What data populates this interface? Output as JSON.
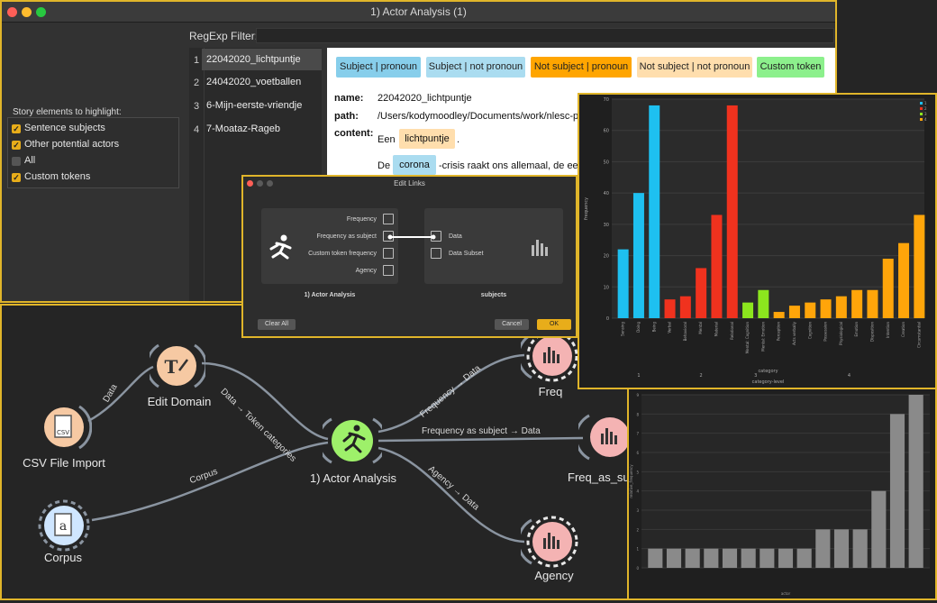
{
  "window": {
    "title": "1) Actor Analysis (1)"
  },
  "regexp": {
    "label": "RegExp Filter:"
  },
  "highlight": {
    "title": "Story elements to highlight:",
    "options": [
      {
        "label": "Sentence subjects",
        "checked": true
      },
      {
        "label": "Other potential actors",
        "checked": true
      },
      {
        "label": "All",
        "checked": false
      },
      {
        "label": "Custom tokens",
        "checked": true
      }
    ]
  },
  "documents": [
    {
      "num": "1",
      "name": "22042020_lichtpuntje"
    },
    {
      "num": "2",
      "name": "24042020_voetballen"
    },
    {
      "num": "3",
      "name": "6-Mijn-eerste-vriendje"
    },
    {
      "num": "4",
      "name": "7-Moataz-Rageb"
    }
  ],
  "legend_tags": [
    {
      "label": "Subject | pronoun",
      "color": "#87ceeb"
    },
    {
      "label": "Subject | not pronoun",
      "color": "#aadcf0"
    },
    {
      "label": "Not subject | pronoun",
      "color": "#ffa500"
    },
    {
      "label": "Not subject | not pronoun",
      "color": "#ffdead"
    },
    {
      "label": "Custom token",
      "color": "#8cf08c"
    }
  ],
  "meta": {
    "name_label": "name:",
    "name_value": "22042020_lichtpuntje",
    "path_label": "path:",
    "path_value": "/Users/kodymoodley/Documents/work/nlesc-proje",
    "content_label": "content:"
  },
  "content_lines": {
    "l1_w1": "Een",
    "l1_tok": "lichtpuntje",
    "l1_end": ".",
    "l2_w1": "De",
    "l2_tok": "corona",
    "l2_rest": "-crisis raakt ons allemaal, de een w"
  },
  "workflow": {
    "nodes": {
      "csv": "CSV File Import",
      "edit": "Edit Domain",
      "actor": "1) Actor Analysis",
      "corpus": "Corpus",
      "freq": "Freq",
      "freq_as": "Freq_as_sub",
      "agency": "Agency"
    },
    "edges": {
      "data": "Data",
      "token": "Data → Token categories",
      "corpus": "Corpus",
      "freq": "Frequency → Data",
      "freq_as": "Frequency as subject → Data",
      "agency": "Agency → Data"
    }
  },
  "dialog": {
    "title": "Edit Links",
    "outputs": [
      "Frequency",
      "Frequency as subject",
      "Custom token frequency",
      "Agency"
    ],
    "inputs": [
      "Data",
      "Data Subset"
    ],
    "left_title": "1) Actor Analysis",
    "right_title": "subjects",
    "clear_label": "Clear All",
    "cancel_label": "Cancel",
    "ok_label": "OK"
  },
  "chart_data": [
    {
      "type": "bar",
      "ylabel": "frequency",
      "xlabel": "category",
      "xlabel2": "category-level",
      "ylim": [
        0,
        70
      ],
      "yticks": [
        "0",
        "10",
        "20",
        "30",
        "40",
        "50",
        "60",
        "70"
      ],
      "groups": [
        "1",
        "2",
        "3",
        "4"
      ],
      "legend": [
        "1",
        "2",
        "3",
        "4"
      ],
      "legend_placement": "top-right",
      "bars": [
        {
          "cat": "Sensing",
          "value": 22,
          "group": 1,
          "color": "#1ec0f0"
        },
        {
          "cat": "Doing",
          "value": 40,
          "group": 1,
          "color": "#1ec0f0"
        },
        {
          "cat": "Being",
          "value": 68,
          "group": 1,
          "color": "#1ec0f0"
        },
        {
          "cat": "Verbal",
          "value": 6,
          "group": 2,
          "color": "#f0321e"
        },
        {
          "cat": "Behavioral",
          "value": 7,
          "group": 2,
          "color": "#f0321e"
        },
        {
          "cat": "Mental",
          "value": 16,
          "group": 2,
          "color": "#f0321e"
        },
        {
          "cat": "Material",
          "value": 33,
          "group": 2,
          "color": "#f0321e"
        },
        {
          "cat": "Relational",
          "value": 68,
          "group": 2,
          "color": "#f0321e"
        },
        {
          "cat": "Mental: Cognition",
          "value": 5,
          "group": 3,
          "color": "#8ce61e"
        },
        {
          "cat": "Mental: Emotion",
          "value": 9,
          "group": 3,
          "color": "#8ce61e"
        },
        {
          "cat": "Perception",
          "value": 2,
          "group": 4,
          "color": "#ffa50a"
        },
        {
          "cat": "Acts verbally",
          "value": 4,
          "group": 4,
          "color": "#ffa50a"
        },
        {
          "cat": "Cognition",
          "value": 5,
          "group": 4,
          "color": "#ffa50a"
        },
        {
          "cat": "Possession",
          "value": 6,
          "group": 4,
          "color": "#ffa50a"
        },
        {
          "cat": "Physiological",
          "value": 7,
          "group": 4,
          "color": "#ffa50a"
        },
        {
          "cat": "Emotion",
          "value": 9,
          "group": 4,
          "color": "#ffa50a"
        },
        {
          "cat": "Disposition",
          "value": 9,
          "group": 4,
          "color": "#ffa50a"
        },
        {
          "cat": "Intention",
          "value": 19,
          "group": 4,
          "color": "#ffa50a"
        },
        {
          "cat": "Creation",
          "value": 24,
          "group": 4,
          "color": "#ffa50a"
        },
        {
          "cat": "Circumstantial",
          "value": 33,
          "group": 4,
          "color": "#ffa50a"
        }
      ]
    },
    {
      "type": "bar",
      "ylabel": "relative_frequency",
      "xlabel": "actor",
      "ylim": [
        0,
        9
      ],
      "yticks": [
        "0",
        "1",
        "2",
        "3",
        "4",
        "5",
        "6",
        "7",
        "8",
        "9"
      ],
      "color": "#8a8a8a",
      "categories": [
        "a1",
        "a2",
        "a3",
        "a4",
        "a5",
        "a6",
        "a7",
        "a8",
        "a9",
        "a10",
        "a11",
        "a12",
        "a13",
        "a14",
        "a15"
      ],
      "values": [
        1,
        1,
        1,
        1,
        1,
        1,
        1,
        1,
        1,
        2,
        2,
        2,
        4,
        8,
        9
      ]
    }
  ]
}
